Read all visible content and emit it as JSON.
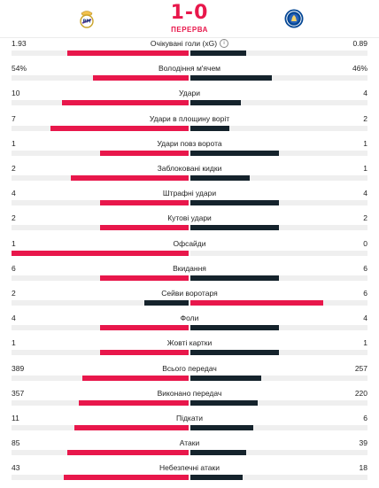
{
  "match": {
    "score": "1-0",
    "status": "ПЕРЕРВА",
    "home_crest_icon": "real-madrid-crest",
    "away_crest_icon": "chelsea-crest"
  },
  "colors": {
    "winner_bar": "#e8174b",
    "other_bar": "#15232c",
    "track": "#efefef"
  },
  "stats": [
    {
      "label": "Очікувані голи (xG)",
      "home": "1.93",
      "away": "0.89",
      "home_value": 1.93,
      "away_value": 0.89,
      "info": true
    },
    {
      "label": "Володіння м'ячем",
      "home": "54%",
      "away": "46%",
      "home_value": 54,
      "away_value": 46
    },
    {
      "label": "Удари",
      "home": "10",
      "away": "4",
      "home_value": 10,
      "away_value": 4
    },
    {
      "label": "Удари в площину воріт",
      "home": "7",
      "away": "2",
      "home_value": 7,
      "away_value": 2
    },
    {
      "label": "Удари повз ворота",
      "home": "1",
      "away": "1",
      "home_value": 1,
      "away_value": 1
    },
    {
      "label": "Заблоковані кидки",
      "home": "2",
      "away": "1",
      "home_value": 2,
      "away_value": 1
    },
    {
      "label": "Штрафні удари",
      "home": "4",
      "away": "4",
      "home_value": 4,
      "away_value": 4
    },
    {
      "label": "Кутові удари",
      "home": "2",
      "away": "2",
      "home_value": 2,
      "away_value": 2
    },
    {
      "label": "Офсайди",
      "home": "1",
      "away": "0",
      "home_value": 1,
      "away_value": 0
    },
    {
      "label": "Вкидання",
      "home": "6",
      "away": "6",
      "home_value": 6,
      "away_value": 6
    },
    {
      "label": "Сейви воротаря",
      "home": "2",
      "away": "6",
      "home_value": 2,
      "away_value": 6
    },
    {
      "label": "Фоли",
      "home": "4",
      "away": "4",
      "home_value": 4,
      "away_value": 4
    },
    {
      "label": "Жовті картки",
      "home": "1",
      "away": "1",
      "home_value": 1,
      "away_value": 1
    },
    {
      "label": "Всього передач",
      "home": "389",
      "away": "257",
      "home_value": 389,
      "away_value": 257
    },
    {
      "label": "Виконано передач",
      "home": "357",
      "away": "220",
      "home_value": 357,
      "away_value": 220
    },
    {
      "label": "Підкати",
      "home": "11",
      "away": "6",
      "home_value": 11,
      "away_value": 6
    },
    {
      "label": "Атаки",
      "home": "85",
      "away": "39",
      "home_value": 85,
      "away_value": 39
    },
    {
      "label": "Небезпечні атаки",
      "home": "43",
      "away": "18",
      "home_value": 43,
      "away_value": 18
    }
  ]
}
